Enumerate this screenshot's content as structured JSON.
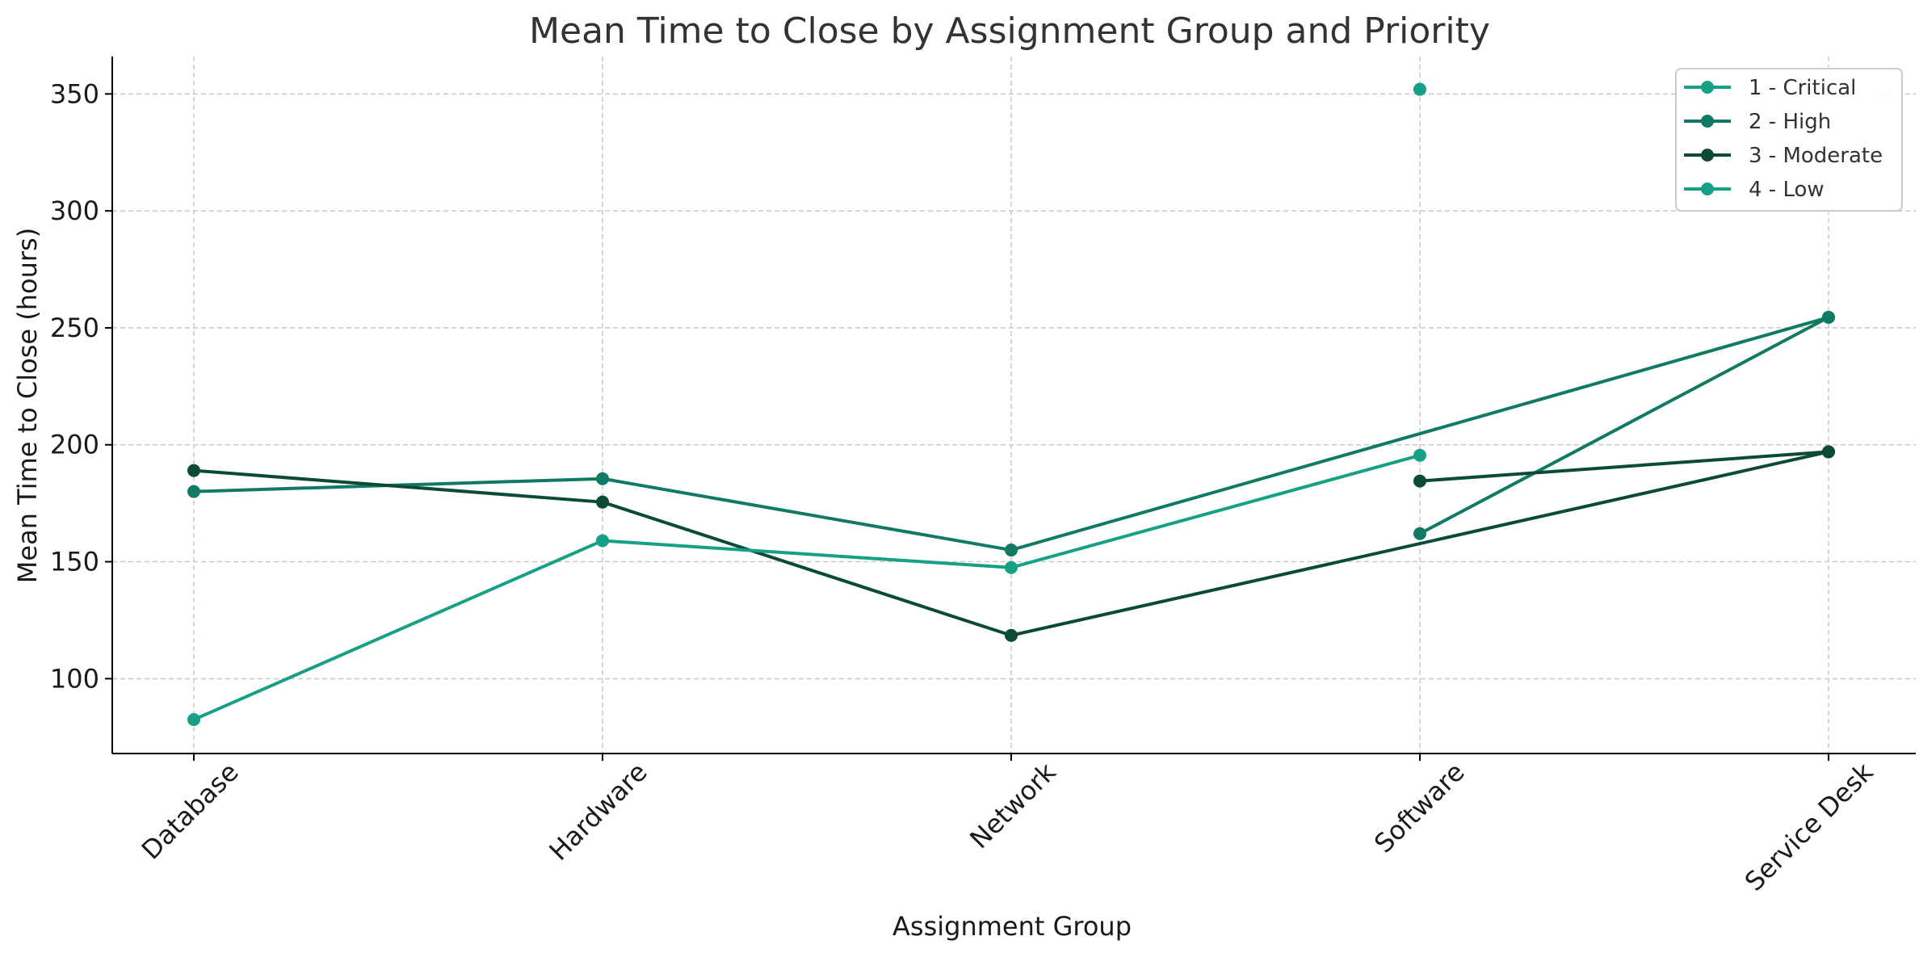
{
  "chart_data": {
    "type": "line",
    "title": "Mean Time to Close by Assignment Group and Priority",
    "xlabel": "Assignment Group",
    "ylabel": "Mean Time to Close (hours)",
    "categories": [
      "Database",
      "Hardware",
      "Network",
      "Software",
      "Service Desk"
    ],
    "ylim": [
      68,
      366
    ],
    "yticks": [
      100,
      150,
      200,
      250,
      300,
      350
    ],
    "grid": true,
    "legend_position": "top-right",
    "series": [
      {
        "name": "1 - Critical",
        "color": "#16a085",
        "points": [
          [
            3,
            352
          ]
        ]
      },
      {
        "name": "2 - High",
        "color": "#117a65",
        "points": [
          [
            0,
            180
          ],
          [
            1,
            185.5
          ],
          [
            2,
            155
          ],
          [
            4,
            254.5
          ],
          [
            3,
            162
          ],
          [
            4,
            254.5
          ]
        ]
      },
      {
        "name": "3 - Moderate",
        "color": "#0b4a36",
        "points": [
          [
            0,
            189
          ],
          [
            1,
            175.5
          ],
          [
            2,
            118.5
          ],
          [
            4,
            197
          ],
          [
            3,
            184.5
          ],
          [
            4,
            197
          ]
        ]
      },
      {
        "name": "4 - Low",
        "color": "#16a085",
        "points": [
          [
            0,
            82.5
          ],
          [
            1,
            159
          ],
          [
            2,
            147.5
          ],
          [
            3,
            195.5
          ]
        ]
      }
    ]
  }
}
